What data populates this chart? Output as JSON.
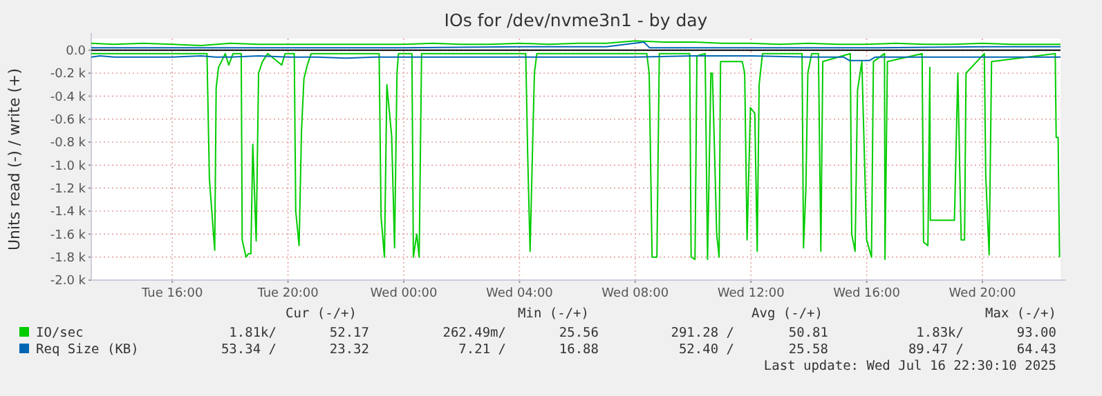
{
  "chart_data": {
    "type": "line",
    "title": "IOs for /dev/nvme3n1 - by day",
    "ylabel": "Units read (-) / write (+)",
    "xlim": [
      "2025-07-15T13:12",
      "2025-07-16T22:42"
    ],
    "xticks": [
      {
        "value": "2025-07-15T16:00",
        "label": "Tue 16:00"
      },
      {
        "value": "2025-07-15T20:00",
        "label": "Tue 20:00"
      },
      {
        "value": "2025-07-16T00:00",
        "label": "Wed 00:00"
      },
      {
        "value": "2025-07-16T04:00",
        "label": "Wed 04:00"
      },
      {
        "value": "2025-07-16T08:00",
        "label": "Wed 08:00"
      },
      {
        "value": "2025-07-16T12:00",
        "label": "Wed 12:00"
      },
      {
        "value": "2025-07-16T16:00",
        "label": "Wed 16:00"
      },
      {
        "value": "2025-07-16T20:00",
        "label": "Wed 20:00"
      }
    ],
    "ylim": [
      -2000,
      100
    ],
    "yticks": [
      {
        "value": -2000,
        "label": "-2.0 k"
      },
      {
        "value": -1800,
        "label": "-1.8 k"
      },
      {
        "value": -1600,
        "label": "-1.6 k"
      },
      {
        "value": -1400,
        "label": "-1.4 k"
      },
      {
        "value": -1200,
        "label": "-1.2 k"
      },
      {
        "value": -1000,
        "label": "-1.0 k"
      },
      {
        "value": -800,
        "label": "-0.8 k"
      },
      {
        "value": -600,
        "label": "-0.6 k"
      },
      {
        "value": -400,
        "label": "-0.4 k"
      },
      {
        "value": -200,
        "label": "-0.2 k"
      },
      {
        "value": 0,
        "label": "0.0"
      }
    ],
    "grid": true,
    "legend": "bottom",
    "series": [
      {
        "name": "IO/sec",
        "color": "#00cc00",
        "x": [
          "2025-07-15T13:12",
          "2025-07-15T17:12",
          "2025-07-15T17:17",
          "2025-07-15T17:28",
          "2025-07-15T17:31",
          "2025-07-15T17:36",
          "2025-07-15T17:50",
          "2025-07-15T17:57",
          "2025-07-15T18:06",
          "2025-07-15T18:23",
          "2025-07-15T18:25",
          "2025-07-15T18:33",
          "2025-07-15T18:38",
          "2025-07-15T18:43",
          "2025-07-15T18:47",
          "2025-07-15T18:54",
          "2025-07-15T18:59",
          "2025-07-15T19:07",
          "2025-07-15T19:18",
          "2025-07-15T19:47",
          "2025-07-15T19:54",
          "2025-07-15T20:13",
          "2025-07-15T20:16",
          "2025-07-15T20:23",
          "2025-07-15T20:28",
          "2025-07-15T20:33",
          "2025-07-15T20:40",
          "2025-07-15T20:48",
          "2025-07-15T23:09",
          "2025-07-15T23:13",
          "2025-07-15T23:20",
          "2025-07-15T23:25",
          "2025-07-15T23:35",
          "2025-07-15T23:41",
          "2025-07-15T23:46",
          "2025-07-15T23:49",
          "2025-07-16T00:17",
          "2025-07-16T00:20",
          "2025-07-16T00:27",
          "2025-07-16T00:32",
          "2025-07-16T00:37",
          "2025-07-16T04:13",
          "2025-07-16T04:17",
          "2025-07-16T04:22",
          "2025-07-16T04:26",
          "2025-07-16T04:31",
          "2025-07-16T04:36",
          "2025-07-16T08:24",
          "2025-07-16T08:29",
          "2025-07-16T08:35",
          "2025-07-16T08:45",
          "2025-07-16T08:50",
          "2025-07-16T09:53",
          "2025-07-16T09:56",
          "2025-07-16T10:04",
          "2025-07-16T10:08",
          "2025-07-16T10:25",
          "2025-07-16T10:30",
          "2025-07-16T10:37",
          "2025-07-16T10:40",
          "2025-07-16T10:44",
          "2025-07-16T10:49",
          "2025-07-16T10:54",
          "2025-07-16T10:57",
          "2025-07-16T11:42",
          "2025-07-16T11:47",
          "2025-07-16T11:52",
          "2025-07-16T11:59",
          "2025-07-16T12:08",
          "2025-07-16T12:13",
          "2025-07-16T12:17",
          "2025-07-16T12:24",
          "2025-07-16T13:46",
          "2025-07-16T13:49",
          "2025-07-16T13:54",
          "2025-07-16T13:58",
          "2025-07-16T14:06",
          "2025-07-16T14:20",
          "2025-07-16T14:25",
          "2025-07-16T14:29",
          "2025-07-16T15:26",
          "2025-07-16T15:29",
          "2025-07-16T15:36",
          "2025-07-16T15:41",
          "2025-07-16T15:50",
          "2025-07-16T16:00",
          "2025-07-16T16:10",
          "2025-07-16T16:14",
          "2025-07-16T16:37",
          "2025-07-16T16:38",
          "2025-07-16T16:43",
          "2025-07-16T17:55",
          "2025-07-16T17:58",
          "2025-07-16T18:07",
          "2025-07-16T18:11",
          "2025-07-16T18:12",
          "2025-07-16T18:19",
          "2025-07-16T19:02",
          "2025-07-16T19:09",
          "2025-07-16T19:16",
          "2025-07-16T19:23",
          "2025-07-16T19:26",
          "2025-07-16T20:04",
          "2025-07-16T20:07",
          "2025-07-16T20:14",
          "2025-07-16T20:19",
          "2025-07-16T22:31",
          "2025-07-16T22:33",
          "2025-07-16T22:37",
          "2025-07-16T22:40"
        ],
        "values": [
          -30,
          -30,
          -1120,
          -1740,
          -330,
          -150,
          -30,
          -130,
          -30,
          -30,
          -1650,
          -1800,
          -1770,
          -1770,
          -820,
          -1660,
          -200,
          -100,
          -30,
          -130,
          -30,
          -30,
          -1400,
          -1700,
          -700,
          -250,
          -130,
          -30,
          -30,
          -1450,
          -1800,
          -300,
          -750,
          -1720,
          -200,
          -30,
          -30,
          -1800,
          -1600,
          -1800,
          -30,
          -30,
          -900,
          -1750,
          -1050,
          -200,
          -30,
          -30,
          -200,
          -1800,
          -1800,
          -30,
          -30,
          -1800,
          -1820,
          -50,
          -30,
          -1820,
          -200,
          -200,
          -800,
          -1600,
          -1800,
          -100,
          -100,
          -200,
          -1650,
          -500,
          -550,
          -1750,
          -300,
          -30,
          -30,
          -1720,
          -1200,
          -200,
          -30,
          -30,
          -1750,
          -100,
          -30,
          -1600,
          -1750,
          -350,
          -100,
          -1650,
          -1800,
          -100,
          -30,
          -1820,
          -100,
          -30,
          -1670,
          -1700,
          -150,
          -1480,
          -1480,
          -1480,
          -200,
          -1650,
          -1650,
          -200,
          -30,
          -1100,
          -1780,
          -100,
          -30,
          -760,
          -760,
          -1800
        ]
      },
      {
        "color": "#00cc00",
        "x": [
          "2025-07-15T13:12",
          "2025-07-15T14:00",
          "2025-07-15T15:00",
          "2025-07-15T16:00",
          "2025-07-15T17:00",
          "2025-07-15T18:00",
          "2025-07-15T19:00",
          "2025-07-15T20:00",
          "2025-07-15T21:00",
          "2025-07-15T22:00",
          "2025-07-15T23:00",
          "2025-07-16T00:00",
          "2025-07-16T01:00",
          "2025-07-16T02:00",
          "2025-07-16T03:00",
          "2025-07-16T04:00",
          "2025-07-16T05:00",
          "2025-07-16T06:00",
          "2025-07-16T07:00",
          "2025-07-16T08:00",
          "2025-07-16T09:00",
          "2025-07-16T10:00",
          "2025-07-16T11:00",
          "2025-07-16T12:00",
          "2025-07-16T13:00",
          "2025-07-16T14:00",
          "2025-07-16T15:00",
          "2025-07-16T16:00",
          "2025-07-16T17:00",
          "2025-07-16T18:00",
          "2025-07-16T19:00",
          "2025-07-16T20:00",
          "2025-07-16T21:00",
          "2025-07-16T22:00",
          "2025-07-16T22:42"
        ],
        "values": [
          60,
          50,
          60,
          50,
          40,
          60,
          50,
          50,
          50,
          50,
          50,
          50,
          60,
          50,
          50,
          60,
          50,
          60,
          60,
          80,
          70,
          70,
          60,
          60,
          50,
          60,
          50,
          50,
          60,
          50,
          50,
          60,
          50,
          50,
          50
        ]
      },
      {
        "name": "Req Size (KB)",
        "color": "#0066b3",
        "x": [
          "2025-07-15T13:12",
          "2025-07-15T13:30",
          "2025-07-15T14:00",
          "2025-07-15T15:00",
          "2025-07-15T16:00",
          "2025-07-15T17:00",
          "2025-07-15T17:30",
          "2025-07-15T18:00",
          "2025-07-15T19:00",
          "2025-07-15T20:00",
          "2025-07-15T21:00",
          "2025-07-15T22:00",
          "2025-07-15T23:00",
          "2025-07-16T00:00",
          "2025-07-16T02:00",
          "2025-07-16T04:00",
          "2025-07-16T06:00",
          "2025-07-16T07:00",
          "2025-07-16T08:00",
          "2025-07-16T10:00",
          "2025-07-16T12:00",
          "2025-07-16T14:00",
          "2025-07-16T15:12",
          "2025-07-16T15:24",
          "2025-07-16T16:06",
          "2025-07-16T16:18",
          "2025-07-16T18:00",
          "2025-07-16T20:00",
          "2025-07-16T22:42"
        ],
        "values": [
          -60,
          -50,
          -60,
          -60,
          -60,
          -50,
          -60,
          -60,
          -50,
          -60,
          -60,
          -70,
          -60,
          -60,
          -60,
          -60,
          -60,
          -60,
          -60,
          -50,
          -50,
          -60,
          -60,
          -90,
          -90,
          -60,
          -60,
          -60,
          -60
        ]
      },
      {
        "color": "#0066b3",
        "x": [
          "2025-07-15T13:12",
          "2025-07-15T15:00",
          "2025-07-15T17:00",
          "2025-07-15T20:00",
          "2025-07-16T00:00",
          "2025-07-16T04:00",
          "2025-07-16T07:00",
          "2025-07-16T08:18",
          "2025-07-16T08:30",
          "2025-07-16T12:00",
          "2025-07-16T16:00",
          "2025-07-16T20:00",
          "2025-07-16T22:42"
        ],
        "values": [
          20,
          20,
          20,
          20,
          20,
          30,
          30,
          70,
          20,
          20,
          20,
          30,
          30
        ]
      }
    ],
    "annotations": [
      "Cur (-/+)",
      "Min (-/+)",
      "Avg (-/+)",
      "Max (-/+)",
      "1.81k/",
      "52.17",
      "262.49m/",
      "25.56",
      "291.28 /",
      "50.81",
      "1.83k/",
      "93.00",
      "53.34 /",
      "23.32",
      "7.21 /",
      "16.88",
      "52.40 /",
      "25.58",
      "89.47 /",
      "64.43",
      "Last update: Wed Jul 16 22:30:10 2025"
    ]
  }
}
